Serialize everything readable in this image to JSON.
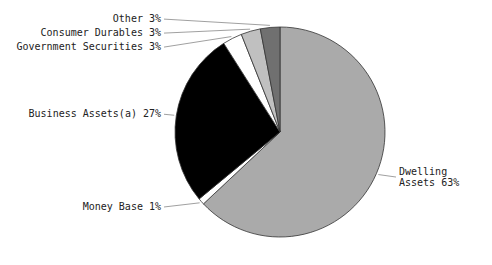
{
  "chart_data": {
    "type": "pie",
    "categories": [
      "Dwelling\nAssets 63%",
      "Money Base 1%",
      "Business Assets(a) 27%",
      "Government Securities 3%",
      "Consumer Durables 3%",
      "Other 3%"
    ],
    "values": [
      63,
      1,
      27,
      3,
      3,
      3
    ],
    "colors": [
      "#aaaaaa",
      "#ffffff",
      "#000000",
      "#ffffff",
      "#c0c0c0",
      "#707070"
    ]
  }
}
